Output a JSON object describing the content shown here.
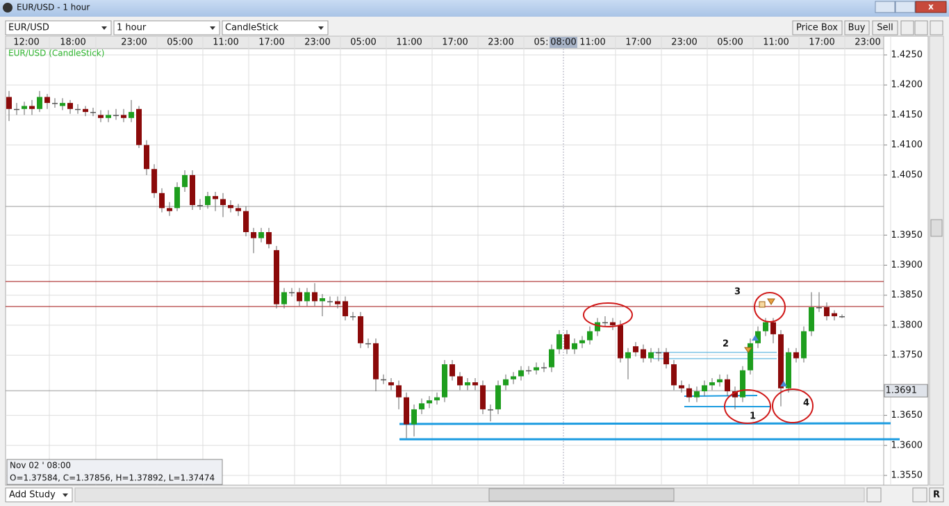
{
  "window": {
    "title": "EUR/USD - 1 hour"
  },
  "toolbar": {
    "symbol": "EUR/USD",
    "interval": "1 hour",
    "chart_style": "CandleStick",
    "buttons": [
      "Price Box",
      "Buy",
      "Sell"
    ]
  },
  "chart": {
    "type": "candlestick",
    "label": "EUR/USD (CandleStick)",
    "time_labels": [
      "12:00",
      "18:00",
      "23:00",
      "05:00",
      "11:00",
      "17:00",
      "23:00",
      "05:00",
      "11:00",
      "17:00",
      "23:00",
      "05:",
      "08:00",
      "11:00",
      "17:00",
      "23:00",
      "05:00",
      "11:00",
      "17:00",
      "23:00"
    ],
    "open": [
      1.418,
      1.416,
      1.416,
      1.4165,
      1.416,
      1.418,
      1.417,
      1.4165,
      1.417,
      1.416,
      1.416,
      1.4155,
      1.415,
      1.4145,
      1.415,
      1.415,
      1.4145,
      1.416,
      1.41,
      1.406,
      1.402,
      1.3995,
      1.3995,
      1.403,
      1.405,
      1.4,
      1.4,
      1.4015,
      1.401,
      1.4,
      1.3995,
      1.399,
      1.3955,
      1.3945,
      1.3955,
      1.3925,
      1.3835,
      1.3855,
      1.3855,
      1.384,
      1.3855,
      1.384,
      1.384,
      1.384,
      1.384,
      1.3815,
      1.3815,
      1.377,
      1.377,
      1.371,
      1.3705,
      1.37,
      1.368,
      1.3635,
      1.366,
      1.367,
      1.3675,
      1.368,
      1.3735,
      1.3715,
      1.37,
      1.3705,
      1.37,
      1.366,
      1.366,
      1.37,
      1.371,
      1.3715,
      1.3725,
      1.3725,
      1.373,
      1.373,
      1.376,
      1.3785,
      1.376,
      1.377,
      1.3775,
      1.379,
      1.3805,
      1.3805,
      1.38,
      1.3745,
      1.3765,
      1.376,
      1.3745,
      1.3755,
      1.3755,
      1.3735,
      1.37,
      1.3695,
      1.368,
      1.369,
      1.37,
      1.3705,
      1.371,
      1.369,
      1.368,
      1.3725,
      1.377,
      1.379,
      1.3805,
      1.3785,
      1.3695,
      1.3755,
      1.3745,
      1.379,
      1.383,
      1.383,
      1.382,
      1.3815
    ],
    "high": [
      1.419,
      1.417,
      1.4172,
      1.4175,
      1.419,
      1.4185,
      1.4178,
      1.4178,
      1.4175,
      1.4168,
      1.4165,
      1.4162,
      1.4158,
      1.4158,
      1.416,
      1.416,
      1.4175,
      1.4165,
      1.4108,
      1.4068,
      1.4028,
      1.4005,
      1.4038,
      1.4058,
      1.4058,
      1.401,
      1.4022,
      1.4022,
      1.402,
      1.4008,
      1.4002,
      1.3998,
      1.3962,
      1.3962,
      1.3962,
      1.3932,
      1.3862,
      1.3862,
      1.3862,
      1.3862,
      1.387,
      1.3852,
      1.3848,
      1.3848,
      1.3848,
      1.3822,
      1.3822,
      1.3778,
      1.3778,
      1.3718,
      1.3712,
      1.3708,
      1.3688,
      1.3668,
      1.3678,
      1.3682,
      1.3688,
      1.3742,
      1.3742,
      1.3722,
      1.3712,
      1.3712,
      1.3708,
      1.3668,
      1.3708,
      1.3718,
      1.3722,
      1.3732,
      1.3732,
      1.3738,
      1.3738,
      1.3768,
      1.3792,
      1.3792,
      1.3778,
      1.3782,
      1.3798,
      1.3812,
      1.3815,
      1.3812,
      1.3808,
      1.3762,
      1.3772,
      1.3768,
      1.3762,
      1.3762,
      1.3762,
      1.3742,
      1.3708,
      1.3702,
      1.3698,
      1.3708,
      1.3712,
      1.3718,
      1.3718,
      1.3698,
      1.3732,
      1.3778,
      1.3798,
      1.3812,
      1.3812,
      1.3792,
      1.3762,
      1.3762,
      1.3798,
      1.3855,
      1.3855,
      1.3838,
      1.3825,
      1.3818
    ],
    "low": [
      1.414,
      1.415,
      1.415,
      1.415,
      1.4155,
      1.416,
      1.4162,
      1.4158,
      1.4152,
      1.4152,
      1.4148,
      1.4148,
      1.4138,
      1.4138,
      1.4142,
      1.4138,
      1.4138,
      1.4095,
      1.405,
      1.4012,
      1.3988,
      1.3982,
      1.399,
      1.4022,
      1.3992,
      1.3992,
      1.3994,
      1.399,
      1.398,
      1.3988,
      1.3982,
      1.3948,
      1.392,
      1.3938,
      1.3928,
      1.3828,
      1.3828,
      1.3848,
      1.3832,
      1.3832,
      1.3832,
      1.3815,
      1.3832,
      1.3828,
      1.3808,
      1.3808,
      1.3762,
      1.3762,
      1.369,
      1.3702,
      1.3692,
      1.366,
      1.3612,
      1.3615,
      1.3652,
      1.3662,
      1.3668,
      1.3672,
      1.3708,
      1.3692,
      1.3692,
      1.3692,
      1.3652,
      1.364,
      1.3652,
      1.3692,
      1.3702,
      1.3708,
      1.3718,
      1.3718,
      1.3722,
      1.3722,
      1.3752,
      1.3752,
      1.3752,
      1.3762,
      1.3768,
      1.3782,
      1.3798,
      1.3792,
      1.3738,
      1.371,
      1.3748,
      1.3738,
      1.3738,
      1.374,
      1.3728,
      1.3692,
      1.3688,
      1.3672,
      1.3672,
      1.3682,
      1.3692,
      1.3698,
      1.3682,
      1.366,
      1.3672,
      1.3718,
      1.3762,
      1.3782,
      1.377,
      1.3665,
      1.3688,
      1.3738,
      1.3738,
      1.3782,
      1.3822,
      1.3808,
      1.3808,
      1.3812
    ],
    "close": [
      1.416,
      1.416,
      1.4165,
      1.416,
      1.418,
      1.417,
      1.417,
      1.417,
      1.416,
      1.416,
      1.4155,
      1.4155,
      1.4145,
      1.415,
      1.415,
      1.4145,
      1.4155,
      1.41,
      1.406,
      1.402,
      1.3995,
      1.399,
      1.403,
      1.405,
      1.4,
      1.4,
      1.4015,
      1.401,
      1.4,
      1.3995,
      1.399,
      1.3955,
      1.3945,
      1.3955,
      1.3935,
      1.3835,
      1.3855,
      1.3855,
      1.384,
      1.3855,
      1.384,
      1.3845,
      1.384,
      1.3835,
      1.3815,
      1.3815,
      1.377,
      1.377,
      1.371,
      1.371,
      1.37,
      1.368,
      1.3635,
      1.366,
      1.367,
      1.3675,
      1.368,
      1.3735,
      1.3715,
      1.37,
      1.3705,
      1.37,
      1.366,
      1.366,
      1.37,
      1.371,
      1.3715,
      1.3725,
      1.3725,
      1.373,
      1.373,
      1.376,
      1.3785,
      1.376,
      1.377,
      1.3775,
      1.379,
      1.3805,
      1.3805,
      1.38,
      1.3745,
      1.3755,
      1.3755,
      1.3745,
      1.3755,
      1.3755,
      1.3735,
      1.37,
      1.3695,
      1.368,
      1.369,
      1.37,
      1.3705,
      1.371,
      1.369,
      1.368,
      1.3725,
      1.377,
      1.379,
      1.3805,
      1.3785,
      1.3695,
      1.3755,
      1.3745,
      1.379,
      1.383,
      1.383,
      1.3815,
      1.3815,
      1.3815
    ],
    "ylim": [
      1.355,
      1.425
    ],
    "yticks": [
      {
        "value": 1.425,
        "label": "1.4250"
      },
      {
        "value": 1.42,
        "label": "1.4200"
      },
      {
        "value": 1.415,
        "label": "1.4150"
      },
      {
        "value": 1.41,
        "label": "1.4100"
      },
      {
        "value": 1.405,
        "label": "1.4050"
      },
      {
        "value": 1.395,
        "label": "1.3950"
      },
      {
        "value": 1.39,
        "label": "1.3900"
      },
      {
        "value": 1.385,
        "label": "1.3850"
      },
      {
        "value": 1.38,
        "label": "1.3800"
      },
      {
        "value": 1.375,
        "label": "1.3750"
      },
      {
        "value": 1.365,
        "label": "1.3650"
      },
      {
        "value": 1.36,
        "label": "1.3600"
      },
      {
        "value": 1.355,
        "label": "1.3550"
      }
    ],
    "grid": true,
    "up_color": "#1e9e1e",
    "down_color": "#8b0a0a",
    "price_marker": {
      "value": 1.3691,
      "label": "1.3691"
    },
    "annotations": [
      "1",
      "2",
      "3",
      "4"
    ],
    "info": {
      "date": "Nov 02 ' 08:00",
      "ohlc": "O=1.37584, C=1.37856, H=1.37892, L=1.37474"
    }
  },
  "bottom": {
    "add_study": "Add Study",
    "r_button": "R"
  }
}
